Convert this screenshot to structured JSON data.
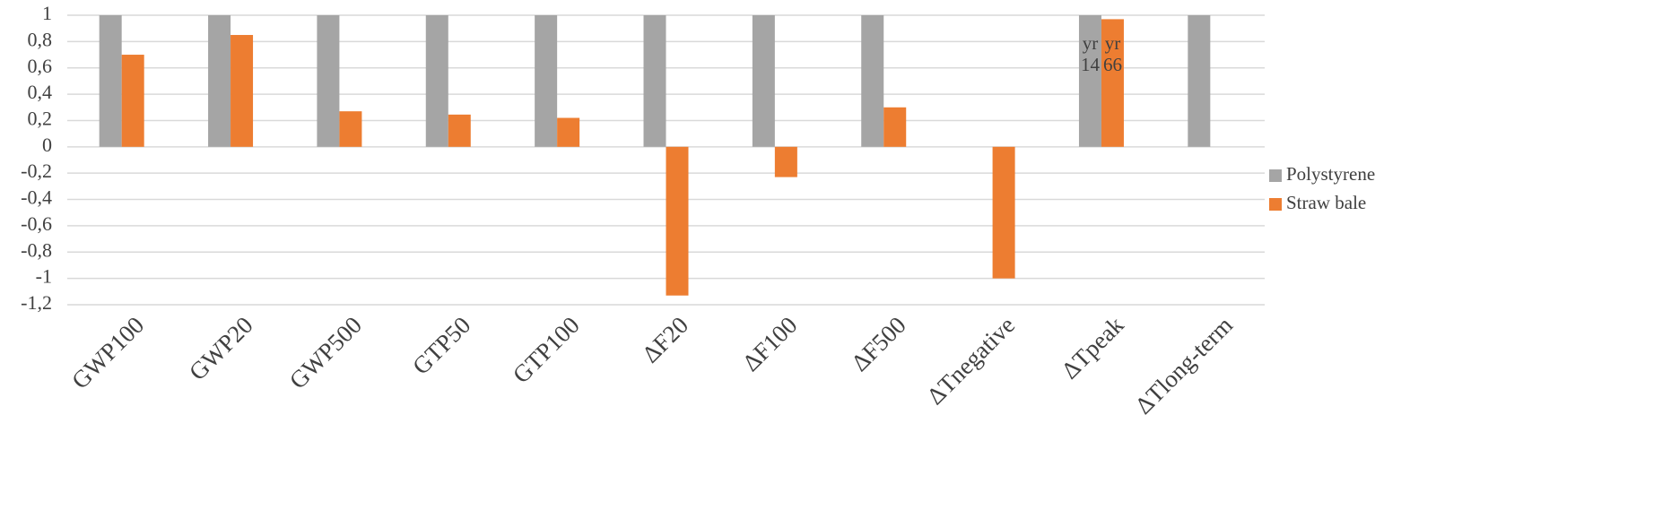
{
  "chart_data": {
    "type": "bar",
    "categories": [
      "GWP100",
      "GWP20",
      "GWP500",
      "GTP50",
      "GTP100",
      "ΔF20",
      "ΔF100",
      "ΔF500",
      "ΔTnegative",
      "ΔTpeak",
      "ΔTlong-term"
    ],
    "series": [
      {
        "name": "Polystyrene",
        "color": "#a5a5a5",
        "values": [
          1,
          1,
          1,
          1,
          1,
          1,
          1,
          1,
          0,
          1,
          1
        ]
      },
      {
        "name": "Straw bale",
        "color": "#ed7d31",
        "values": [
          0.7,
          0.85,
          0.27,
          0.245,
          0.22,
          -1.13,
          -0.23,
          0.3,
          -1.0,
          0.97,
          0
        ]
      }
    ],
    "annotations": [
      {
        "text": "yr 14",
        "category": "ΔTpeak",
        "series": "Polystyrene"
      },
      {
        "text": "yr 66",
        "category": "ΔTpeak",
        "series": "Straw bale"
      }
    ],
    "ylim": [
      -1.2,
      1
    ],
    "yticks": [
      1,
      {
        "value": 0.8,
        "label": "0,8"
      },
      {
        "value": 0.6,
        "label": "0,6"
      },
      {
        "value": 0.4,
        "label": "0,4"
      },
      {
        "value": 0.2,
        "label": "0,2"
      },
      0,
      {
        "value": -0.2,
        "label": "-0,2"
      },
      {
        "value": -0.4,
        "label": "-0,4"
      },
      {
        "value": -0.6,
        "label": "-0,6"
      },
      {
        "value": -0.8,
        "label": "-0,8"
      },
      -1,
      {
        "value": -1.2,
        "label": "-1,2"
      }
    ],
    "grid": true,
    "legend": "right"
  }
}
